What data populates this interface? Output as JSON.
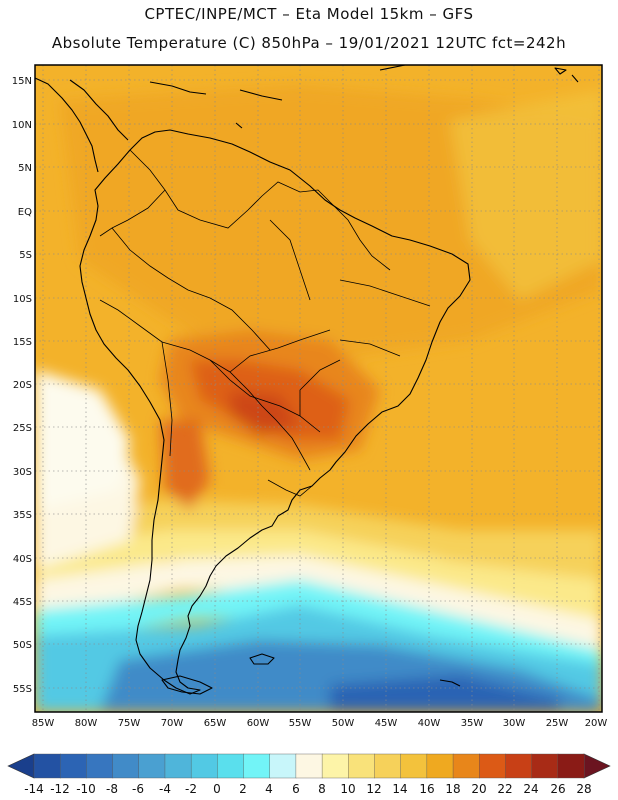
{
  "header": {
    "line1": "CPTEC/INPE/MCT –  Eta Model 15km – GFS",
    "line2": "Absolute Temperature (C) 850hPa – 19/01/2021 12UTC fct=242h"
  },
  "axes": {
    "lat_labels": [
      "15N",
      "10N",
      "5N",
      "EQ",
      "5S",
      "10S",
      "15S",
      "20S",
      "25S",
      "30S",
      "35S",
      "40S",
      "45S",
      "50S",
      "55S"
    ],
    "lon_labels": [
      "85W",
      "80W",
      "75W",
      "70W",
      "65W",
      "60W",
      "55W",
      "50W",
      "45W",
      "40W",
      "35W",
      "30W",
      "25W",
      "20W"
    ]
  },
  "colorbar": {
    "labels": [
      "-14",
      "-12",
      "-10",
      "-8",
      "-6",
      "-4",
      "-2",
      "0",
      "2",
      "4",
      "6",
      "8",
      "10",
      "12",
      "14",
      "16",
      "18",
      "20",
      "22",
      "24",
      "26",
      "28"
    ],
    "colors": [
      "#1a3f8c",
      "#2352a3",
      "#2c64b4",
      "#3776bf",
      "#418bc8",
      "#4aa0d1",
      "#4fb5da",
      "#52c9e4",
      "#5adfed",
      "#72f4f7",
      "#c8f6fa",
      "#fdf7e3",
      "#fdf4a8",
      "#f9e27a",
      "#f6d15a",
      "#f3c23c",
      "#efa920",
      "#e8861a",
      "#dc5a16",
      "#c84016",
      "#a82b16",
      "#8a1b16",
      "#6b1420"
    ]
  }
}
